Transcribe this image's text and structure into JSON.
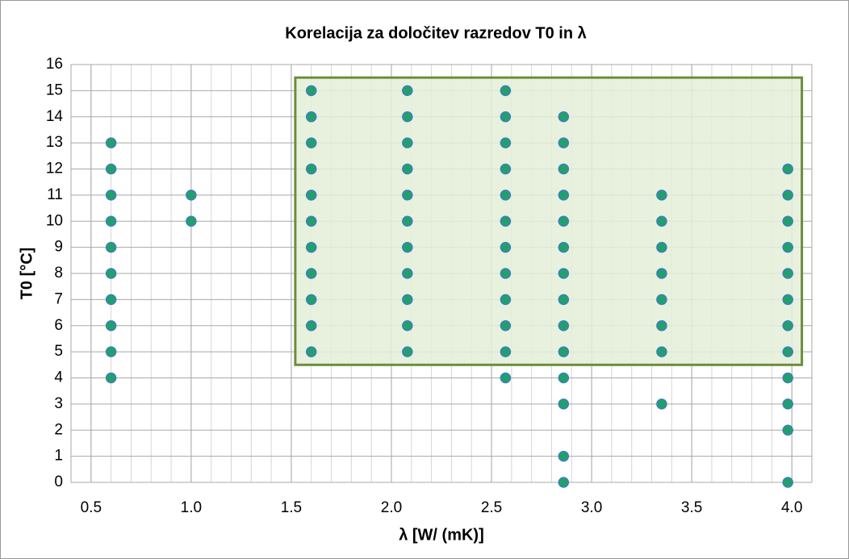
{
  "chart_data": {
    "type": "scatter",
    "title": "Korelacija za določitev razredov T0 in λ",
    "x_label": "λ [W/ (mK)]",
    "y_label": "T0 [°C]",
    "x": [
      0.6,
      0.6,
      0.6,
      0.6,
      0.6,
      0.6,
      0.6,
      0.6,
      0.6,
      0.6,
      1.0,
      1.0,
      1.6,
      1.6,
      1.6,
      1.6,
      1.6,
      1.6,
      1.6,
      1.6,
      1.6,
      1.6,
      1.6,
      2.08,
      2.08,
      2.08,
      2.08,
      2.08,
      2.08,
      2.08,
      2.08,
      2.08,
      2.08,
      2.08,
      2.57,
      2.57,
      2.57,
      2.57,
      2.57,
      2.57,
      2.57,
      2.57,
      2.57,
      2.57,
      2.57,
      2.57,
      2.86,
      2.86,
      2.86,
      2.86,
      2.86,
      2.86,
      2.86,
      2.86,
      2.86,
      2.86,
      2.86,
      2.86,
      2.86,
      2.86,
      3.35,
      3.35,
      3.35,
      3.35,
      3.35,
      3.35,
      3.35,
      3.35,
      3.98,
      3.98,
      3.98,
      3.98,
      3.98,
      3.98,
      3.98,
      3.98,
      3.98,
      3.98,
      3.98,
      3.98
    ],
    "values": [
      4,
      5,
      6,
      7,
      8,
      9,
      10,
      11,
      12,
      13,
      10,
      11,
      5,
      6,
      7,
      8,
      9,
      10,
      11,
      12,
      13,
      14,
      15,
      5,
      6,
      7,
      8,
      9,
      10,
      11,
      12,
      13,
      14,
      15,
      4,
      5,
      6,
      7,
      8,
      9,
      10,
      11,
      12,
      13,
      14,
      15,
      0,
      1,
      3,
      4,
      5,
      6,
      7,
      8,
      9,
      10,
      11,
      12,
      13,
      14,
      3,
      5,
      6,
      7,
      8,
      9,
      10,
      11,
      0,
      2,
      3,
      4,
      5,
      6,
      7,
      8,
      9,
      10,
      11,
      12
    ],
    "color": "#22a06b",
    "region": {
      "x": [
        1.52,
        4.05
      ],
      "y": [
        4.5,
        15.5
      ],
      "color": "#e4eed8",
      "border": "#6b8e3a"
    },
    "xlim": [
      0.4,
      4.1
    ],
    "xticks": [
      {
        "value": 0.5,
        "label": "0.5"
      },
      {
        "value": 1.0,
        "label": "1.0"
      },
      {
        "value": 1.5,
        "label": "1.5"
      },
      {
        "value": 2.0,
        "label": "2.0"
      },
      {
        "value": 2.5,
        "label": "2.5"
      },
      {
        "value": 3.0,
        "label": "3.0"
      },
      {
        "value": 3.5,
        "label": "3.5"
      },
      {
        "value": 4.0,
        "label": "4.0"
      }
    ],
    "x_minor_step": 0.1,
    "ylim": [
      0,
      16
    ],
    "yticks": [
      0,
      1,
      2,
      3,
      4,
      5,
      6,
      7,
      8,
      9,
      10,
      11,
      12,
      13,
      14,
      15,
      16
    ],
    "grid": true
  }
}
